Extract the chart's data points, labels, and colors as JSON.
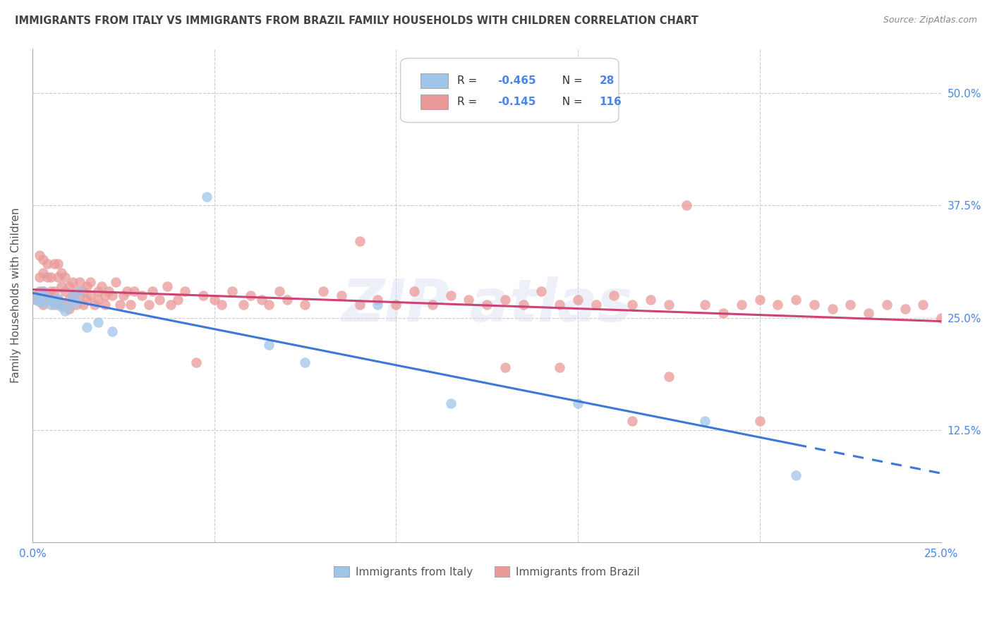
{
  "title": "IMMIGRANTS FROM ITALY VS IMMIGRANTS FROM BRAZIL FAMILY HOUSEHOLDS WITH CHILDREN CORRELATION CHART",
  "source": "Source: ZipAtlas.com",
  "xlabel_italy": "Immigrants from Italy",
  "xlabel_brazil": "Immigrants from Brazil",
  "ylabel": "Family Households with Children",
  "xlim": [
    0.0,
    0.25
  ],
  "ylim": [
    0.0,
    0.55
  ],
  "ytick_vals": [
    0.125,
    0.25,
    0.375,
    0.5
  ],
  "ytick_labels": [
    "12.5%",
    "25.0%",
    "37.5%",
    "50.0%"
  ],
  "xtick_vals": [
    0.0,
    0.05,
    0.1,
    0.15,
    0.2,
    0.25
  ],
  "xtick_labels": [
    "0.0%",
    "",
    "",
    "",
    "",
    "25.0%"
  ],
  "legend_italy_R": "-0.465",
  "legend_italy_N": "28",
  "legend_brazil_R": "-0.145",
  "legend_brazil_N": "116",
  "color_italy": "#9fc5e8",
  "color_brazil": "#ea9999",
  "color_trend_italy": "#3c78d8",
  "color_trend_brazil": "#cc4477",
  "color_axis_labels": "#4a86e8",
  "color_title": "#434343",
  "color_grid": "#cccccc",
  "italy_x": [
    0.001,
    0.002,
    0.002,
    0.003,
    0.003,
    0.004,
    0.005,
    0.005,
    0.006,
    0.007,
    0.007,
    0.008,
    0.009,
    0.01,
    0.011,
    0.012,
    0.013,
    0.015,
    0.018,
    0.022,
    0.048,
    0.065,
    0.075,
    0.095,
    0.115,
    0.15,
    0.185,
    0.21
  ],
  "italy_y": [
    0.27,
    0.268,
    0.275,
    0.267,
    0.28,
    0.272,
    0.265,
    0.27,
    0.268,
    0.265,
    0.272,
    0.262,
    0.258,
    0.263,
    0.275,
    0.268,
    0.28,
    0.24,
    0.245,
    0.235,
    0.385,
    0.22,
    0.2,
    0.265,
    0.155,
    0.155,
    0.135,
    0.075
  ],
  "brazil_x": [
    0.001,
    0.001,
    0.002,
    0.002,
    0.002,
    0.003,
    0.003,
    0.003,
    0.003,
    0.004,
    0.004,
    0.004,
    0.005,
    0.005,
    0.005,
    0.006,
    0.006,
    0.006,
    0.007,
    0.007,
    0.007,
    0.008,
    0.008,
    0.008,
    0.009,
    0.009,
    0.01,
    0.01,
    0.01,
    0.011,
    0.011,
    0.012,
    0.012,
    0.013,
    0.013,
    0.014,
    0.014,
    0.015,
    0.015,
    0.016,
    0.016,
    0.017,
    0.018,
    0.018,
    0.019,
    0.02,
    0.02,
    0.021,
    0.022,
    0.023,
    0.024,
    0.025,
    0.026,
    0.027,
    0.028,
    0.03,
    0.032,
    0.033,
    0.035,
    0.037,
    0.038,
    0.04,
    0.042,
    0.045,
    0.047,
    0.05,
    0.052,
    0.055,
    0.058,
    0.06,
    0.063,
    0.065,
    0.068,
    0.07,
    0.075,
    0.08,
    0.085,
    0.09,
    0.095,
    0.1,
    0.105,
    0.11,
    0.115,
    0.12,
    0.125,
    0.13,
    0.135,
    0.14,
    0.145,
    0.15,
    0.155,
    0.16,
    0.165,
    0.17,
    0.175,
    0.18,
    0.185,
    0.19,
    0.195,
    0.2,
    0.205,
    0.21,
    0.215,
    0.22,
    0.225,
    0.23,
    0.235,
    0.24,
    0.245,
    0.25,
    0.165,
    0.09,
    0.13,
    0.175,
    0.2,
    0.145
  ],
  "brazil_y": [
    0.27,
    0.275,
    0.32,
    0.295,
    0.28,
    0.3,
    0.315,
    0.28,
    0.265,
    0.275,
    0.295,
    0.31,
    0.27,
    0.28,
    0.295,
    0.31,
    0.265,
    0.28,
    0.295,
    0.31,
    0.27,
    0.285,
    0.3,
    0.265,
    0.28,
    0.295,
    0.27,
    0.285,
    0.26,
    0.275,
    0.29,
    0.265,
    0.28,
    0.275,
    0.29,
    0.265,
    0.28,
    0.27,
    0.285,
    0.275,
    0.29,
    0.265,
    0.28,
    0.27,
    0.285,
    0.275,
    0.265,
    0.28,
    0.275,
    0.29,
    0.265,
    0.275,
    0.28,
    0.265,
    0.28,
    0.275,
    0.265,
    0.28,
    0.27,
    0.285,
    0.265,
    0.27,
    0.28,
    0.2,
    0.275,
    0.27,
    0.265,
    0.28,
    0.265,
    0.275,
    0.27,
    0.265,
    0.28,
    0.27,
    0.265,
    0.28,
    0.275,
    0.265,
    0.27,
    0.265,
    0.28,
    0.265,
    0.275,
    0.27,
    0.265,
    0.27,
    0.265,
    0.28,
    0.265,
    0.27,
    0.265,
    0.275,
    0.265,
    0.27,
    0.265,
    0.375,
    0.265,
    0.255,
    0.265,
    0.27,
    0.265,
    0.27,
    0.265,
    0.26,
    0.265,
    0.255,
    0.265,
    0.26,
    0.265,
    0.25,
    0.135,
    0.335,
    0.195,
    0.185,
    0.135,
    0.195
  ],
  "background_color": "#ffffff"
}
